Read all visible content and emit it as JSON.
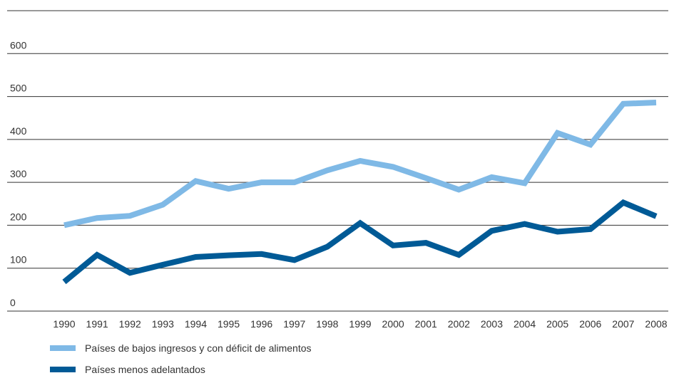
{
  "chart_data": {
    "type": "line",
    "title": "",
    "xlabel": "",
    "ylabel": "",
    "ylim": [
      0,
      700
    ],
    "y_ticks": [
      "0",
      "100",
      "200",
      "300",
      "400",
      "500",
      "600"
    ],
    "x": [
      "1990",
      "1991",
      "1992",
      "1993",
      "1994",
      "1995",
      "1996",
      "1997",
      "1998",
      "1999",
      "2000",
      "2001",
      "2002",
      "2003",
      "2004",
      "2005",
      "2006",
      "2007",
      "2008"
    ],
    "grid": "horizontal",
    "legend_position": "bottom-left",
    "series": [
      {
        "name": "Países de bajos ingresos y con déficit de alimentos",
        "color": "#7fb9e6",
        "values": [
          200,
          217,
          222,
          248,
          303,
          285,
          300,
          300,
          328,
          350,
          336,
          310,
          283,
          312,
          298,
          415,
          388,
          483,
          486
        ]
      },
      {
        "name": "Países menos adelantados",
        "color": "#005a96",
        "values": [
          68,
          131,
          89,
          108,
          126,
          130,
          133,
          119,
          150,
          205,
          153,
          159,
          131,
          187,
          203,
          185,
          191,
          253,
          221
        ]
      }
    ]
  }
}
